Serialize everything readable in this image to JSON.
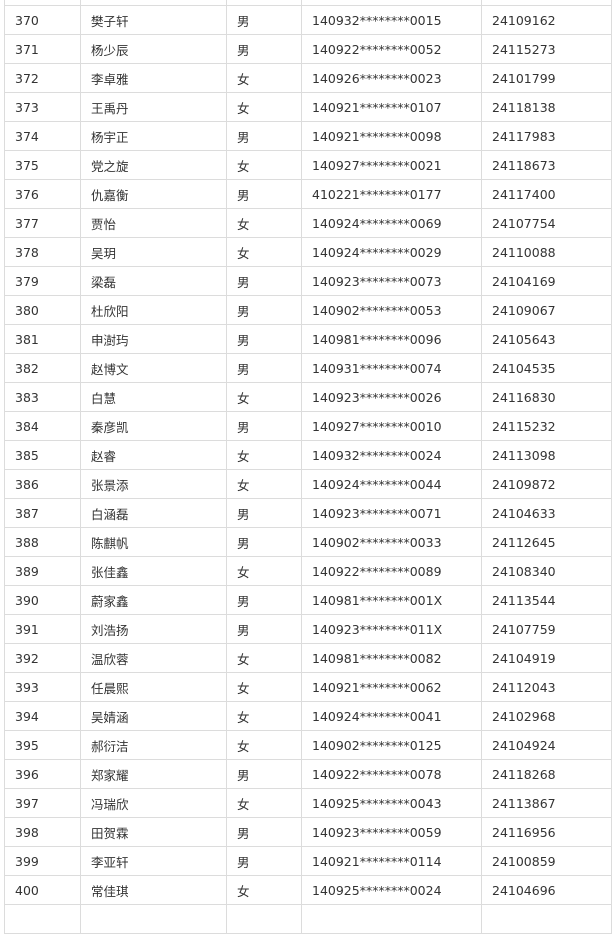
{
  "rows": [
    [
      "370",
      "樊子轩",
      "男",
      "140932********0015",
      "24109162"
    ],
    [
      "371",
      "杨少辰",
      "男",
      "140922********0052",
      "24115273"
    ],
    [
      "372",
      "李卓雅",
      "女",
      "140926********0023",
      "24101799"
    ],
    [
      "373",
      "王禹丹",
      "女",
      "140921********0107",
      "24118138"
    ],
    [
      "374",
      "杨宇正",
      "男",
      "140921********0098",
      "24117983"
    ],
    [
      "375",
      "党之旋",
      "女",
      "140927********0021",
      "24118673"
    ],
    [
      "376",
      "仇嘉衡",
      "男",
      "410221********0177",
      "24117400"
    ],
    [
      "377",
      "贾怡",
      "女",
      "140924********0069",
      "24107754"
    ],
    [
      "378",
      "吴玥",
      "女",
      "140924********0029",
      "24110088"
    ],
    [
      "379",
      "梁磊",
      "男",
      "140923********0073",
      "24104169"
    ],
    [
      "380",
      "杜欣阳",
      "男",
      "140902********0053",
      "24109067"
    ],
    [
      "381",
      "申澍玙",
      "男",
      "140981********0096",
      "24105643"
    ],
    [
      "382",
      "赵博文",
      "男",
      "140931********0074",
      "24104535"
    ],
    [
      "383",
      "白慧",
      "女",
      "140923********0026",
      "24116830"
    ],
    [
      "384",
      "秦彦凯",
      "男",
      "140927********0010",
      "24115232"
    ],
    [
      "385",
      "赵睿",
      "女",
      "140932********0024",
      "24113098"
    ],
    [
      "386",
      "张景添",
      "女",
      "140924********0044",
      "24109872"
    ],
    [
      "387",
      "白涵磊",
      "男",
      "140923********0071",
      "24104633"
    ],
    [
      "388",
      "陈麒帆",
      "男",
      "140902********0033",
      "24112645"
    ],
    [
      "389",
      "张佳鑫",
      "女",
      "140922********0089",
      "24108340"
    ],
    [
      "390",
      "蔚家鑫",
      "男",
      "140981********001X",
      "24113544"
    ],
    [
      "391",
      "刘浩扬",
      "男",
      "140923********011X",
      "24107759"
    ],
    [
      "392",
      "温欣蓉",
      "女",
      "140981********0082",
      "24104919"
    ],
    [
      "393",
      "任晨熙",
      "女",
      "140921********0062",
      "24112043"
    ],
    [
      "394",
      "吴婧涵",
      "女",
      "140924********0041",
      "24102968"
    ],
    [
      "395",
      "郝衍洁",
      "女",
      "140902********0125",
      "24104924"
    ],
    [
      "396",
      "郑家耀",
      "男",
      "140922********0078",
      "24118268"
    ],
    [
      "397",
      "冯瑞欣",
      "女",
      "140925********0043",
      "24113867"
    ],
    [
      "398",
      "田贺霖",
      "男",
      "140923********0059",
      "24116956"
    ],
    [
      "399",
      "李亚轩",
      "男",
      "140921********0114",
      "24100859"
    ],
    [
      "400",
      "常佳琪",
      "女",
      "140925********0024",
      "24104696"
    ]
  ]
}
